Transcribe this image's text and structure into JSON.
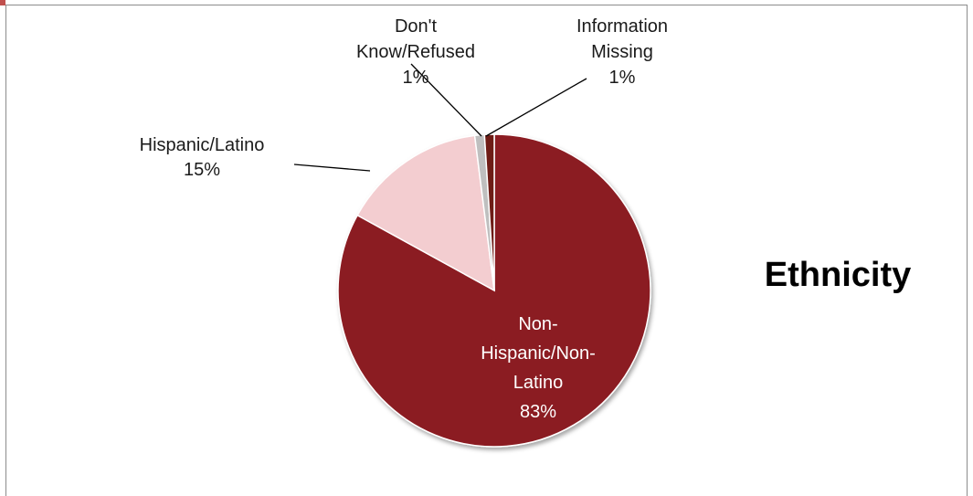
{
  "chart_data": {
    "type": "pie",
    "title": "Ethnicity",
    "start_angle_deg": 0,
    "direction": "clockwise",
    "legend": "none",
    "slices": [
      {
        "label_lines": [
          "Non-",
          "Hispanic/Non-",
          "Latino"
        ],
        "label": "Non-Hispanic/Non-Latino",
        "value": 83,
        "value_label": "83%",
        "color": "#8b1a21",
        "label_position": "inside"
      },
      {
        "label_lines": [
          "Hispanic/Latino"
        ],
        "label": "Hispanic/Latino",
        "value": 15,
        "value_label": "15%",
        "color": "#f3cdd0",
        "label_position": "outside"
      },
      {
        "label_lines": [
          "Don't",
          "Know/Refused"
        ],
        "label": "Don't Know/Refused",
        "value": 1,
        "value_label": "1%",
        "color": "#bfbfbf",
        "label_position": "outside"
      },
      {
        "label_lines": [
          "Information",
          "Missing"
        ],
        "label": "Information Missing",
        "value": 1,
        "value_label": "1%",
        "color": "#6e1b14",
        "label_position": "outside"
      }
    ]
  }
}
